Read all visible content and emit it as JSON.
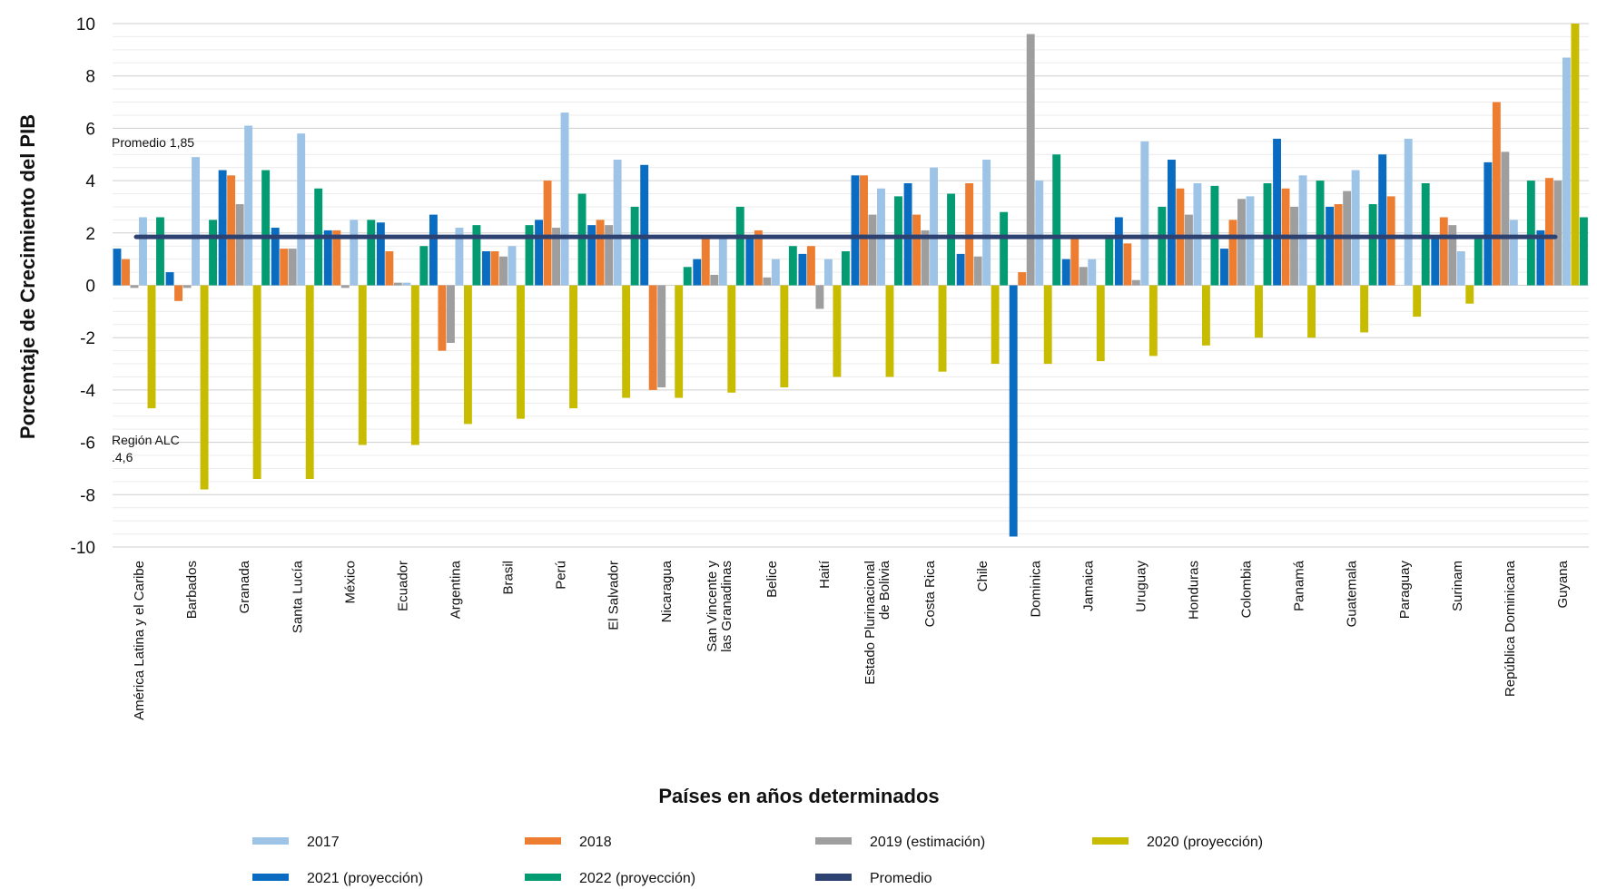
{
  "chart_data": {
    "type": "bar",
    "xlabel": "Países en años determinados",
    "ylabel": "Porcentaje de Crecimiento del PIB",
    "ylim": [
      -10,
      10
    ],
    "yticks": [
      -10,
      -8,
      -6,
      -4,
      -2,
      0,
      2,
      4,
      6,
      8,
      10
    ],
    "grid": true,
    "legend_position": "bottom",
    "categories": [
      "América Latina y el Caribe",
      "Barbados",
      "Granada",
      "Santa Lucía",
      "México",
      "Ecuador",
      "Argentina",
      "Brasil",
      "Perú",
      "El Salvador",
      "Nicaragua",
      "San Vincente y las Granadinas",
      "Belice",
      "Haití",
      "Estado Plurinacional de Bolivia",
      "Costa Rica",
      "Chile",
      "Dominica",
      "Jamaica",
      "Uruguay",
      "Honduras",
      "Colombia",
      "Panamá",
      "Guatemala",
      "Paraguay",
      "Surinam",
      "República Dominicana",
      "Guyana"
    ],
    "series": [
      {
        "name": "2021 (proyección)",
        "color": "#0a6cc1",
        "values": [
          1.4,
          0.5,
          4.4,
          2.2,
          2.1,
          2.4,
          2.7,
          1.3,
          2.5,
          2.3,
          4.6,
          1.0,
          1.9,
          1.2,
          4.2,
          3.9,
          1.2,
          -9.6,
          1.0,
          2.6,
          4.8,
          1.4,
          5.6,
          3.0,
          5.0,
          1.9,
          4.7,
          2.1
        ]
      },
      {
        "name": "2018",
        "color": "#ed7d31",
        "values": [
          1.0,
          -0.6,
          4.2,
          1.4,
          2.1,
          1.3,
          -2.5,
          1.3,
          4.0,
          2.5,
          -4.0,
          1.8,
          2.1,
          1.5,
          4.2,
          2.7,
          3.9,
          0.5,
          1.8,
          1.6,
          3.7,
          2.5,
          3.7,
          3.1,
          3.4,
          2.6,
          7.0,
          4.1
        ]
      },
      {
        "name": "2019 (estimación)",
        "color": "#9e9e9e",
        "values": [
          -0.1,
          -0.1,
          3.1,
          1.4,
          -0.1,
          0.1,
          -2.2,
          1.1,
          2.2,
          2.3,
          -3.9,
          0.4,
          0.3,
          -0.9,
          2.7,
          2.1,
          1.1,
          9.6,
          0.7,
          0.2,
          2.7,
          3.3,
          3.0,
          3.6,
          0.0,
          2.3,
          5.1,
          4.0
        ]
      },
      {
        "name": "2017",
        "color": "#9dc3e6",
        "values": [
          2.6,
          4.9,
          6.1,
          5.8,
          2.5,
          0.1,
          2.2,
          1.5,
          6.6,
          4.8,
          0.0,
          1.8,
          1.0,
          1.0,
          3.7,
          4.5,
          4.8,
          4.0,
          1.0,
          5.5,
          3.9,
          3.4,
          4.2,
          4.4,
          5.6,
          1.3,
          2.5,
          8.7
        ]
      },
      {
        "name": "2020 (proyección)",
        "color": "#c8bc00",
        "values": [
          -4.7,
          -7.8,
          -7.4,
          -7.4,
          -6.1,
          -6.1,
          -5.3,
          -5.1,
          -4.7,
          -4.3,
          -4.3,
          -4.1,
          -3.9,
          -3.5,
          -3.5,
          -3.3,
          -3.0,
          -3.0,
          -2.9,
          -2.7,
          -2.3,
          -2.0,
          -2.0,
          -1.8,
          -1.2,
          -0.7,
          0.0,
          10.0
        ]
      },
      {
        "name": "2022 (proyección)",
        "color": "#039c72",
        "values": [
          2.6,
          2.5,
          4.4,
          3.7,
          2.5,
          1.5,
          2.3,
          2.3,
          3.5,
          3.0,
          0.7,
          3.0,
          1.5,
          1.3,
          3.4,
          3.5,
          2.8,
          5.0,
          1.9,
          3.0,
          3.8,
          3.9,
          4.0,
          3.1,
          3.9,
          1.8,
          4.0,
          2.6
        ]
      }
    ],
    "average": {
      "name": "Promedio",
      "value": 1.85,
      "color": "#2e4272"
    },
    "legend_order": [
      "2017",
      "2018",
      "2019 (estimación)",
      "2020 (proyección)",
      "2021 (proyección)",
      "2022 (proyección)",
      "Promedio"
    ],
    "annotations": {
      "promedio": "Promedio 1,85",
      "region_line1": "Región ALC",
      "region_line2": ".4,6"
    }
  }
}
